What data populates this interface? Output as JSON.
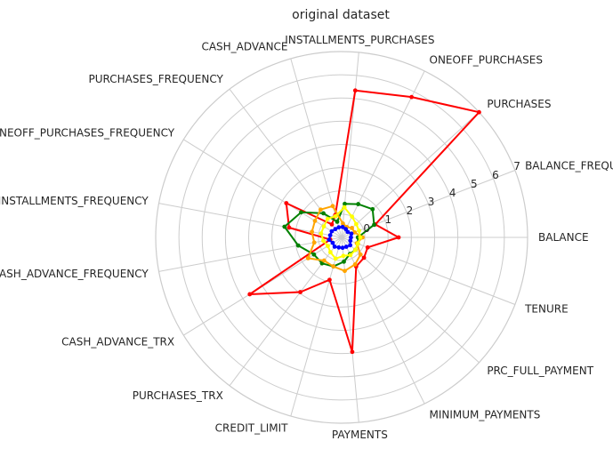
{
  "chart_data": {
    "type": "radar",
    "title": "original dataset",
    "categories": [
      "BALANCE",
      "BALANCE_FREQUENCY",
      "PURCHASES",
      "ONEOFF_PURCHASES",
      "INSTALLMENTS_PURCHASES",
      "CASH_ADVANCE",
      "PURCHASES_FREQUENCY",
      "ONEOFF_PURCHASES_FREQUENCY",
      "PURCHASES_INSTALLMENTS_FREQUENCY",
      "CASH_ADVANCE_FREQUENCY",
      "CASH_ADVANCE_TRX",
      "PURCHASES_TRX",
      "CREDIT_LIMIT",
      "PAYMENTS",
      "MINIMUM_PAYMENTS",
      "PRC_FULL_PAYMENT",
      "TENURE"
    ],
    "r_ticks": [
      "0",
      "1",
      "2",
      "3",
      "4",
      "5",
      "6",
      "7"
    ],
    "r_min": -1,
    "r_max": 7,
    "grid": true,
    "series": [
      {
        "color": "#ff0000",
        "values": [
          1.45,
          0.55,
          7.0,
          5.75,
          5.35,
          0.0,
          -0.3,
          1.8,
          1.3,
          -0.5,
          3.65,
          1.95,
          0.9,
          3.95,
          0.4,
          0.3,
          0.2
        ]
      },
      {
        "color": "#008000",
        "values": [
          -0.3,
          0.5,
          0.8,
          0.6,
          0.45,
          -0.3,
          0.3,
          1.05,
          1.5,
          0.9,
          0.4,
          0.4,
          0.3,
          0.05,
          -0.2,
          -0.2,
          -0.25
        ]
      },
      {
        "color": "#ffa500",
        "values": [
          -0.1,
          -0.4,
          -0.4,
          -0.5,
          -0.4,
          0.4,
          0.5,
          0.35,
          0.3,
          0.2,
          0.7,
          0.25,
          0.3,
          0.45,
          0.3,
          0.1,
          -0.3
        ]
      },
      {
        "color": "#0000ff",
        "values": [
          -0.6,
          -0.55,
          -0.65,
          -0.6,
          -0.55,
          -0.55,
          -0.55,
          -0.5,
          -0.5,
          -0.45,
          -0.55,
          -0.5,
          -0.55,
          -0.55,
          -0.55,
          -0.5,
          -0.6
        ]
      },
      {
        "color": "#ffff00",
        "values": [
          -0.2,
          -0.2,
          -0.15,
          0.0,
          0.3,
          -0.05,
          0.0,
          -0.1,
          -0.1,
          -0.2,
          -0.3,
          -0.2,
          -0.05,
          -0.2,
          -0.15,
          -0.2,
          -0.25
        ]
      }
    ]
  }
}
